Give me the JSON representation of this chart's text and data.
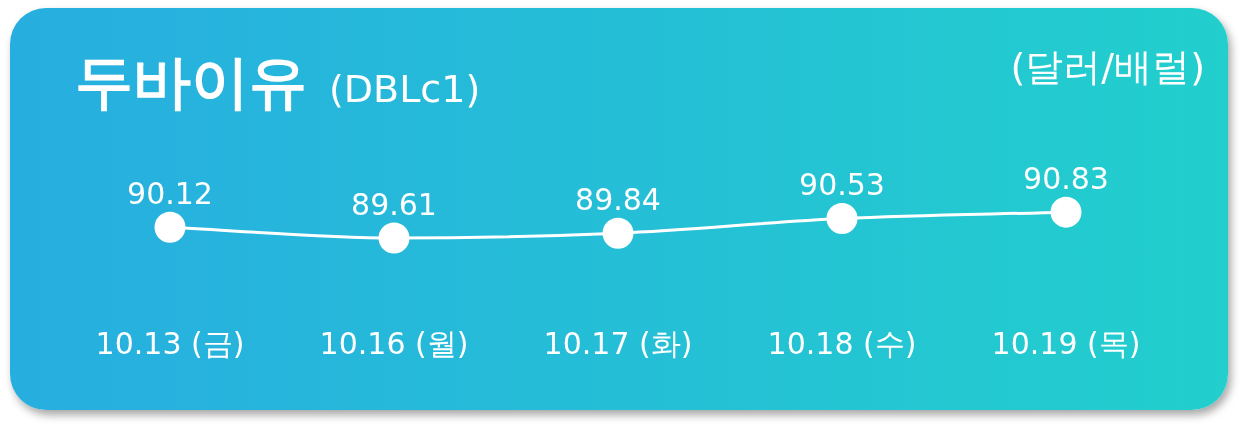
{
  "chart_data": {
    "type": "line",
    "title": "두바이유",
    "subtitle": "(DBLc1)",
    "ylabel": "(달러/배럴)",
    "categories": [
      "10.13 (금)",
      "10.16 (월)",
      "10.17 (화)",
      "10.18 (수)",
      "10.19 (목)"
    ],
    "series": [
      {
        "color": "#ffffff",
        "values": [
          90.12,
          89.61,
          89.84,
          90.53,
          90.83
        ]
      }
    ],
    "data_labels": true,
    "marker": "circle",
    "line_style": "solid",
    "grid": false,
    "legend": false,
    "tick_labels": "x"
  }
}
